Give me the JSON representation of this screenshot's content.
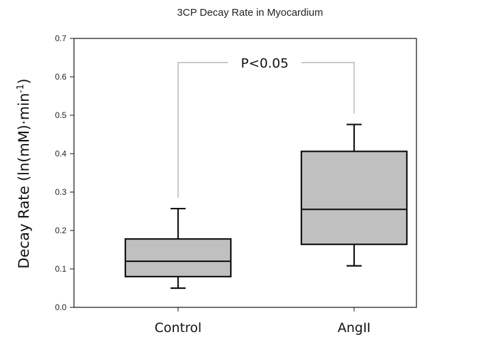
{
  "chart_data": {
    "type": "box",
    "title": "3CP Decay Rate in Myocardium",
    "ylabel": {
      "main": "Decay Rate (ln(mM)·min",
      "superscript": "-1",
      "close": ")"
    },
    "xlabel": "",
    "ylim": [
      0,
      0.7
    ],
    "yticks": [
      "0.0",
      "0.1",
      "0.2",
      "0.3",
      "0.4",
      "0.5",
      "0.6",
      "0.7"
    ],
    "categories": [
      "Control",
      "AngII"
    ],
    "boxes": [
      {
        "category": "Control",
        "whisker_low": 0.05,
        "q1": 0.08,
        "median": 0.12,
        "q3": 0.178,
        "whisker_high": 0.257
      },
      {
        "category": "AngII",
        "whisker_low": 0.108,
        "q1": 0.164,
        "median": 0.255,
        "q3": 0.406,
        "whisker_high": 0.476
      }
    ],
    "significance": {
      "label": "P<0.05",
      "y": 0.637,
      "left_end": 0.285,
      "right_end": 0.505
    },
    "grid": false,
    "legend": "none",
    "colors": {
      "box_fill": "#c0c0c0",
      "box_stroke": "#111111",
      "bracket": "#a8a8a8",
      "axis": "#111111"
    }
  }
}
